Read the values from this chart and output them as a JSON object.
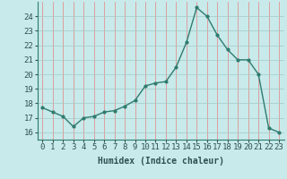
{
  "x": [
    0,
    1,
    2,
    3,
    4,
    5,
    6,
    7,
    8,
    9,
    10,
    11,
    12,
    13,
    14,
    15,
    16,
    17,
    18,
    19,
    20,
    21,
    22,
    23
  ],
  "y": [
    17.7,
    17.4,
    17.1,
    16.4,
    17.0,
    17.1,
    17.4,
    17.5,
    17.8,
    18.2,
    19.2,
    19.4,
    19.5,
    20.5,
    22.2,
    24.6,
    24.0,
    22.7,
    21.7,
    21.0,
    21.0,
    20.0,
    16.3,
    16.0
  ],
  "line_color": "#2e7b6e",
  "marker_color": "#2e7b6e",
  "bg_color": "#c8eaea",
  "grid_color_v": "#e88080",
  "grid_color_h": "#a0c8c8",
  "xlabel": "Humidex (Indice chaleur)",
  "ylim": [
    15.5,
    25.0
  ],
  "xlim": [
    -0.5,
    23.5
  ],
  "yticks": [
    16,
    17,
    18,
    19,
    20,
    21,
    22,
    23,
    24
  ],
  "xticks": [
    0,
    1,
    2,
    3,
    4,
    5,
    6,
    7,
    8,
    9,
    10,
    11,
    12,
    13,
    14,
    15,
    16,
    17,
    18,
    19,
    20,
    21,
    22,
    23
  ],
  "xlabel_fontsize": 7,
  "tick_fontsize": 6.5
}
